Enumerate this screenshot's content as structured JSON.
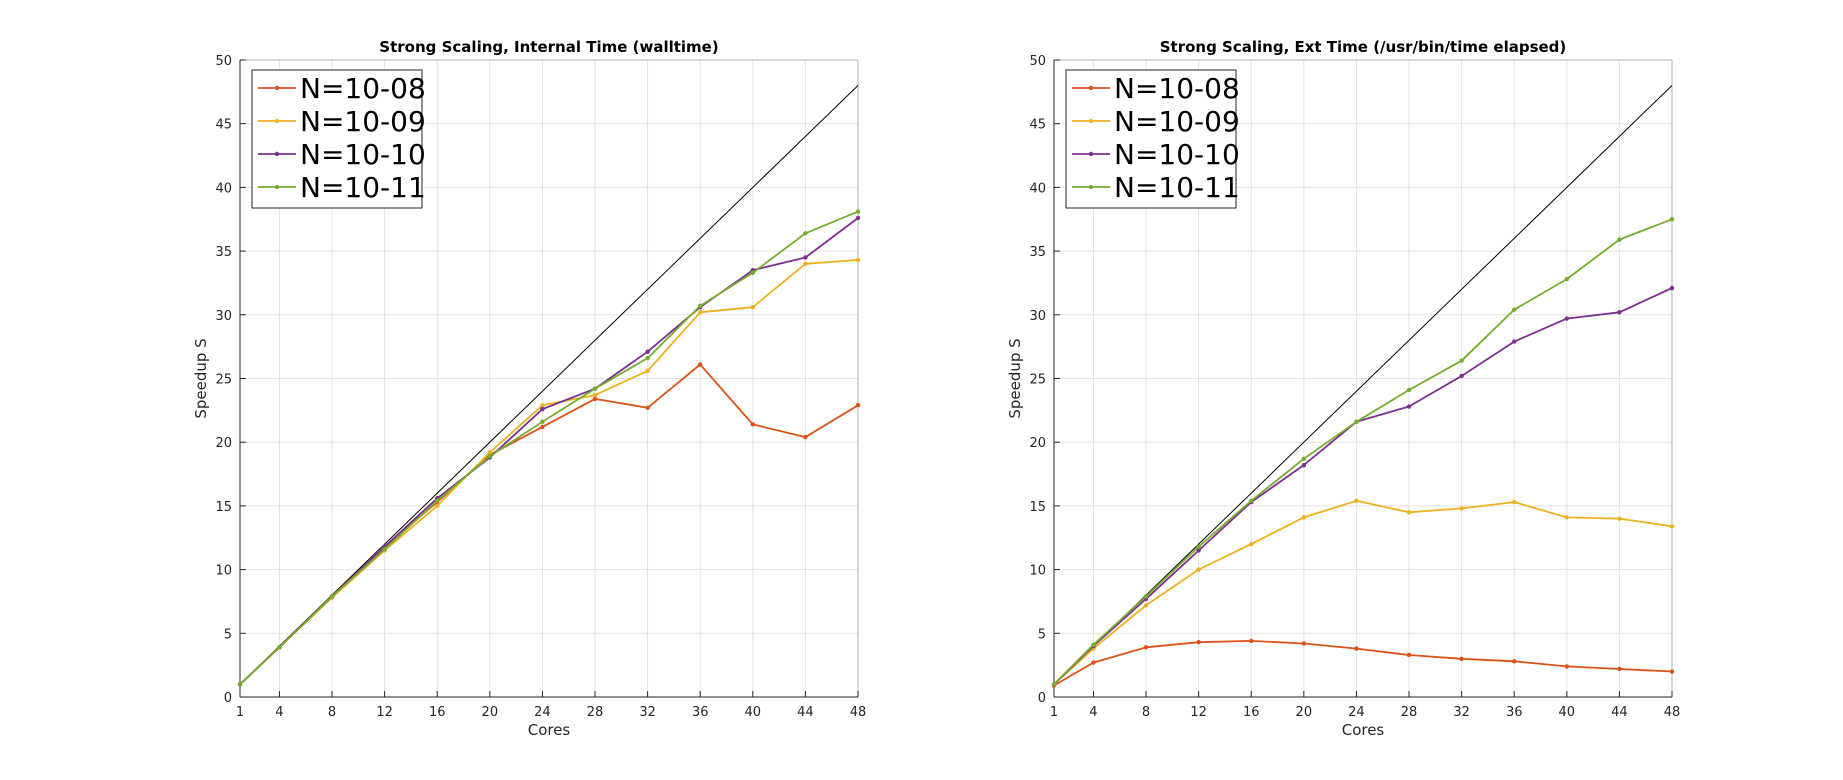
{
  "chart_data": [
    {
      "type": "line",
      "title": "Strong Scaling, Internal Time (walltime)",
      "xlabel": "Cores",
      "ylabel": "Speedup S",
      "xlim": [
        1,
        48
      ],
      "ylim": [
        0,
        50
      ],
      "xticks": [
        1,
        4,
        8,
        12,
        16,
        20,
        24,
        28,
        32,
        36,
        40,
        44,
        48
      ],
      "yticks": [
        0,
        5,
        10,
        15,
        20,
        25,
        30,
        35,
        40,
        45,
        50
      ],
      "grid": true,
      "legend_position": "top-left",
      "x": [
        1,
        4,
        8,
        12,
        16,
        20,
        24,
        28,
        32,
        36,
        40,
        44,
        48
      ],
      "ideal": {
        "x": [
          1,
          48
        ],
        "y": [
          1,
          48
        ],
        "color": "#000000"
      },
      "series": [
        {
          "name": "N=10-08",
          "color": "#D95319",
          "values": [
            1,
            3.9,
            7.9,
            11.8,
            15.3,
            19.0,
            21.2,
            23.4,
            22.7,
            26.1,
            21.4,
            20.4,
            22.9
          ]
        },
        {
          "name": "N=10-09",
          "color": "#EDB120",
          "values": [
            1,
            3.9,
            7.8,
            11.5,
            15.0,
            19.2,
            22.9,
            23.7,
            25.6,
            30.2,
            30.6,
            34.0,
            34.3
          ]
        },
        {
          "name": "N=10-10",
          "color": "#7E2F8E",
          "values": [
            1,
            3.9,
            7.9,
            11.8,
            15.6,
            18.8,
            22.6,
            24.2,
            27.1,
            30.6,
            33.5,
            34.5,
            37.6
          ]
        },
        {
          "name": "N=10-11",
          "color": "#77AC30",
          "values": [
            1,
            3.9,
            7.9,
            11.6,
            15.4,
            18.9,
            21.6,
            24.2,
            26.6,
            30.7,
            33.3,
            36.4,
            38.1
          ]
        }
      ]
    },
    {
      "type": "line",
      "title": "Strong Scaling, Ext Time (/usr/bin/time elapsed)",
      "xlabel": "Cores",
      "ylabel": "Speedup S",
      "xlim": [
        1,
        48
      ],
      "ylim": [
        0,
        50
      ],
      "xticks": [
        1,
        4,
        8,
        12,
        16,
        20,
        24,
        28,
        32,
        36,
        40,
        44,
        48
      ],
      "yticks": [
        0,
        5,
        10,
        15,
        20,
        25,
        30,
        35,
        40,
        45,
        50
      ],
      "grid": true,
      "legend_position": "top-left",
      "x": [
        1,
        4,
        8,
        12,
        16,
        20,
        24,
        28,
        32,
        36,
        40,
        44,
        48
      ],
      "ideal": {
        "x": [
          1,
          48
        ],
        "y": [
          1,
          48
        ],
        "color": "#000000"
      },
      "series": [
        {
          "name": "N=10-08",
          "color": "#D95319",
          "values": [
            0.9,
            2.7,
            3.9,
            4.3,
            4.4,
            4.2,
            3.8,
            3.3,
            3.0,
            2.8,
            2.4,
            2.2,
            2.0
          ]
        },
        {
          "name": "N=10-09",
          "color": "#EDB120",
          "values": [
            1,
            3.8,
            7.2,
            10.0,
            12.0,
            14.1,
            15.4,
            14.5,
            14.8,
            15.3,
            14.1,
            14.0,
            13.4
          ]
        },
        {
          "name": "N=10-10",
          "color": "#7E2F8E",
          "values": [
            1,
            4.0,
            7.7,
            11.5,
            15.3,
            18.2,
            21.6,
            22.8,
            25.2,
            27.9,
            29.7,
            30.2,
            32.1
          ]
        },
        {
          "name": "N=10-11",
          "color": "#77AC30",
          "values": [
            1,
            4.1,
            7.9,
            11.8,
            15.4,
            18.7,
            21.6,
            24.1,
            26.4,
            30.4,
            32.8,
            35.9,
            37.5
          ]
        }
      ]
    }
  ]
}
